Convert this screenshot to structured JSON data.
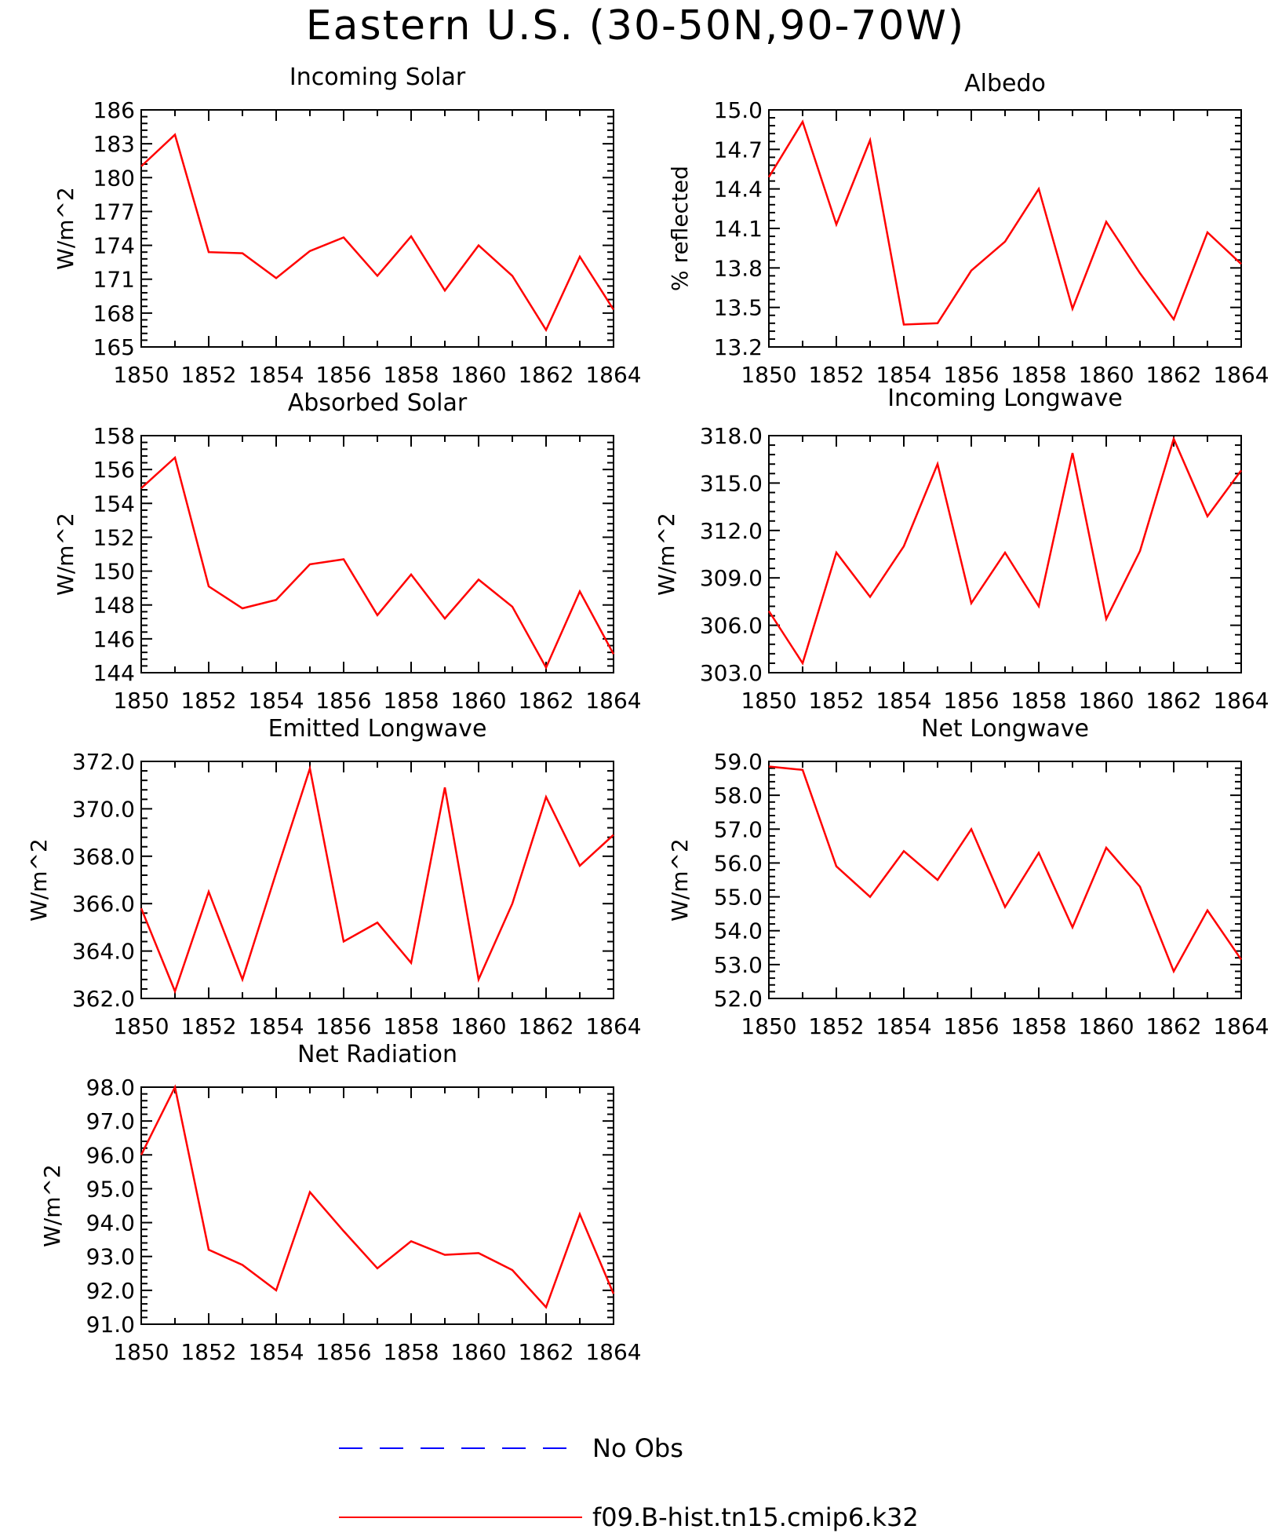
{
  "title": "Eastern U.S. (30-50N,90-70W)",
  "colors": {
    "model_line": "#ff0000",
    "obs_line": "#0000ff",
    "axes": "#000000"
  },
  "legend": {
    "placement": "bottom-center",
    "entries": [
      {
        "label": "No Obs",
        "color": "#0000ff",
        "style": "dashed"
      },
      {
        "label": "f09.B-hist.tn15.cmip6.k32",
        "color": "#ff0000",
        "style": "solid"
      }
    ]
  },
  "chart_data": [
    {
      "type": "line",
      "title": "Incoming Solar",
      "ylabel": "W/m^2",
      "xlim": [
        1850,
        1864
      ],
      "ylim": [
        165,
        186
      ],
      "xticks": [
        1850,
        1852,
        1854,
        1856,
        1858,
        1860,
        1862,
        1864
      ],
      "yticks": [
        165,
        168,
        171,
        174,
        177,
        180,
        183,
        186
      ],
      "ydecimals": 0,
      "x": [
        1850,
        1851,
        1852,
        1853,
        1854,
        1855,
        1856,
        1857,
        1858,
        1859,
        1860,
        1861,
        1862,
        1863,
        1864
      ],
      "series": [
        {
          "name": "f09.B-hist.tn15.cmip6.k32",
          "color": "#ff0000",
          "values": [
            181.0,
            183.8,
            173.4,
            173.3,
            171.1,
            173.5,
            174.7,
            171.3,
            174.8,
            170.0,
            174.0,
            171.3,
            166.5,
            173.0,
            168.3
          ]
        }
      ]
    },
    {
      "type": "line",
      "title": "Albedo",
      "ylabel": "% reflected",
      "xlim": [
        1850,
        1864
      ],
      "ylim": [
        13.2,
        15.0
      ],
      "xticks": [
        1850,
        1852,
        1854,
        1856,
        1858,
        1860,
        1862,
        1864
      ],
      "yticks": [
        13.2,
        13.5,
        13.8,
        14.1,
        14.4,
        14.7,
        15.0
      ],
      "ydecimals": 1,
      "x": [
        1850,
        1851,
        1852,
        1853,
        1854,
        1855,
        1856,
        1857,
        1858,
        1859,
        1860,
        1861,
        1862,
        1863,
        1864
      ],
      "series": [
        {
          "name": "f09.B-hist.tn15.cmip6.k32",
          "color": "#ff0000",
          "values": [
            14.49,
            14.91,
            14.13,
            14.77,
            13.37,
            13.38,
            13.78,
            14.0,
            14.4,
            13.49,
            14.15,
            13.76,
            13.41,
            14.07,
            13.83
          ]
        }
      ]
    },
    {
      "type": "line",
      "title": "Absorbed Solar",
      "ylabel": "W/m^2",
      "xlim": [
        1850,
        1864
      ],
      "ylim": [
        144,
        158
      ],
      "xticks": [
        1850,
        1852,
        1854,
        1856,
        1858,
        1860,
        1862,
        1864
      ],
      "yticks": [
        144,
        146,
        148,
        150,
        152,
        154,
        156,
        158
      ],
      "ydecimals": 0,
      "x": [
        1850,
        1851,
        1852,
        1853,
        1854,
        1855,
        1856,
        1857,
        1858,
        1859,
        1860,
        1861,
        1862,
        1863,
        1864
      ],
      "series": [
        {
          "name": "f09.B-hist.tn15.cmip6.k32",
          "color": "#ff0000",
          "values": [
            154.9,
            156.7,
            149.1,
            147.8,
            148.3,
            150.4,
            150.7,
            147.4,
            149.8,
            147.2,
            149.5,
            147.9,
            144.3,
            148.8,
            145.1
          ]
        }
      ]
    },
    {
      "type": "line",
      "title": "Incoming Longwave",
      "ylabel": "W/m^2",
      "xlim": [
        1850,
        1864
      ],
      "ylim": [
        303.0,
        318.0
      ],
      "xticks": [
        1850,
        1852,
        1854,
        1856,
        1858,
        1860,
        1862,
        1864
      ],
      "yticks": [
        303.0,
        306.0,
        309.0,
        312.0,
        315.0,
        318.0
      ],
      "ydecimals": 1,
      "x": [
        1850,
        1851,
        1852,
        1853,
        1854,
        1855,
        1856,
        1857,
        1858,
        1859,
        1860,
        1861,
        1862,
        1863,
        1864
      ],
      "series": [
        {
          "name": "f09.B-hist.tn15.cmip6.k32",
          "color": "#ff0000",
          "values": [
            306.9,
            303.6,
            310.6,
            307.8,
            311.0,
            316.2,
            307.4,
            310.6,
            307.2,
            316.9,
            306.4,
            310.7,
            317.8,
            312.9,
            315.8
          ]
        }
      ]
    },
    {
      "type": "line",
      "title": "Emitted Longwave",
      "ylabel": "W/m^2",
      "xlim": [
        1850,
        1864
      ],
      "ylim": [
        362.0,
        372.0
      ],
      "xticks": [
        1850,
        1852,
        1854,
        1856,
        1858,
        1860,
        1862,
        1864
      ],
      "yticks": [
        362.0,
        364.0,
        366.0,
        368.0,
        370.0,
        372.0
      ],
      "ydecimals": 1,
      "x": [
        1850,
        1851,
        1852,
        1853,
        1854,
        1855,
        1856,
        1857,
        1858,
        1859,
        1860,
        1861,
        1862,
        1863,
        1864
      ],
      "series": [
        {
          "name": "f09.B-hist.tn15.cmip6.k32",
          "color": "#ff0000",
          "values": [
            365.8,
            362.3,
            366.5,
            362.8,
            367.3,
            371.7,
            364.4,
            365.2,
            363.5,
            370.9,
            362.8,
            366.0,
            370.5,
            367.6,
            368.9
          ]
        }
      ]
    },
    {
      "type": "line",
      "title": "Net Longwave",
      "ylabel": "W/m^2",
      "xlim": [
        1850,
        1864
      ],
      "ylim": [
        52.0,
        59.0
      ],
      "xticks": [
        1850,
        1852,
        1854,
        1856,
        1858,
        1860,
        1862,
        1864
      ],
      "yticks": [
        52.0,
        53.0,
        54.0,
        55.0,
        56.0,
        57.0,
        58.0,
        59.0
      ],
      "ydecimals": 1,
      "x": [
        1850,
        1851,
        1852,
        1853,
        1854,
        1855,
        1856,
        1857,
        1858,
        1859,
        1860,
        1861,
        1862,
        1863,
        1864
      ],
      "series": [
        {
          "name": "f09.B-hist.tn15.cmip6.k32",
          "color": "#ff0000",
          "values": [
            58.85,
            58.75,
            55.9,
            55.0,
            56.35,
            55.5,
            57.0,
            54.7,
            56.3,
            54.1,
            56.45,
            55.3,
            52.8,
            54.6,
            53.15
          ]
        }
      ]
    },
    {
      "type": "line",
      "title": "Net Radiation",
      "ylabel": "W/m^2",
      "xlim": [
        1850,
        1864
      ],
      "ylim": [
        91.0,
        98.0
      ],
      "xticks": [
        1850,
        1852,
        1854,
        1856,
        1858,
        1860,
        1862,
        1864
      ],
      "yticks": [
        91.0,
        92.0,
        93.0,
        94.0,
        95.0,
        96.0,
        97.0,
        98.0
      ],
      "ydecimals": 1,
      "x": [
        1850,
        1851,
        1852,
        1853,
        1854,
        1855,
        1856,
        1857,
        1858,
        1859,
        1860,
        1861,
        1862,
        1863,
        1864
      ],
      "series": [
        {
          "name": "f09.B-hist.tn15.cmip6.k32",
          "color": "#ff0000",
          "values": [
            96.0,
            98.0,
            93.2,
            92.75,
            92.0,
            94.9,
            93.75,
            92.65,
            93.45,
            93.05,
            93.1,
            92.6,
            91.5,
            94.25,
            91.9
          ]
        }
      ]
    }
  ]
}
